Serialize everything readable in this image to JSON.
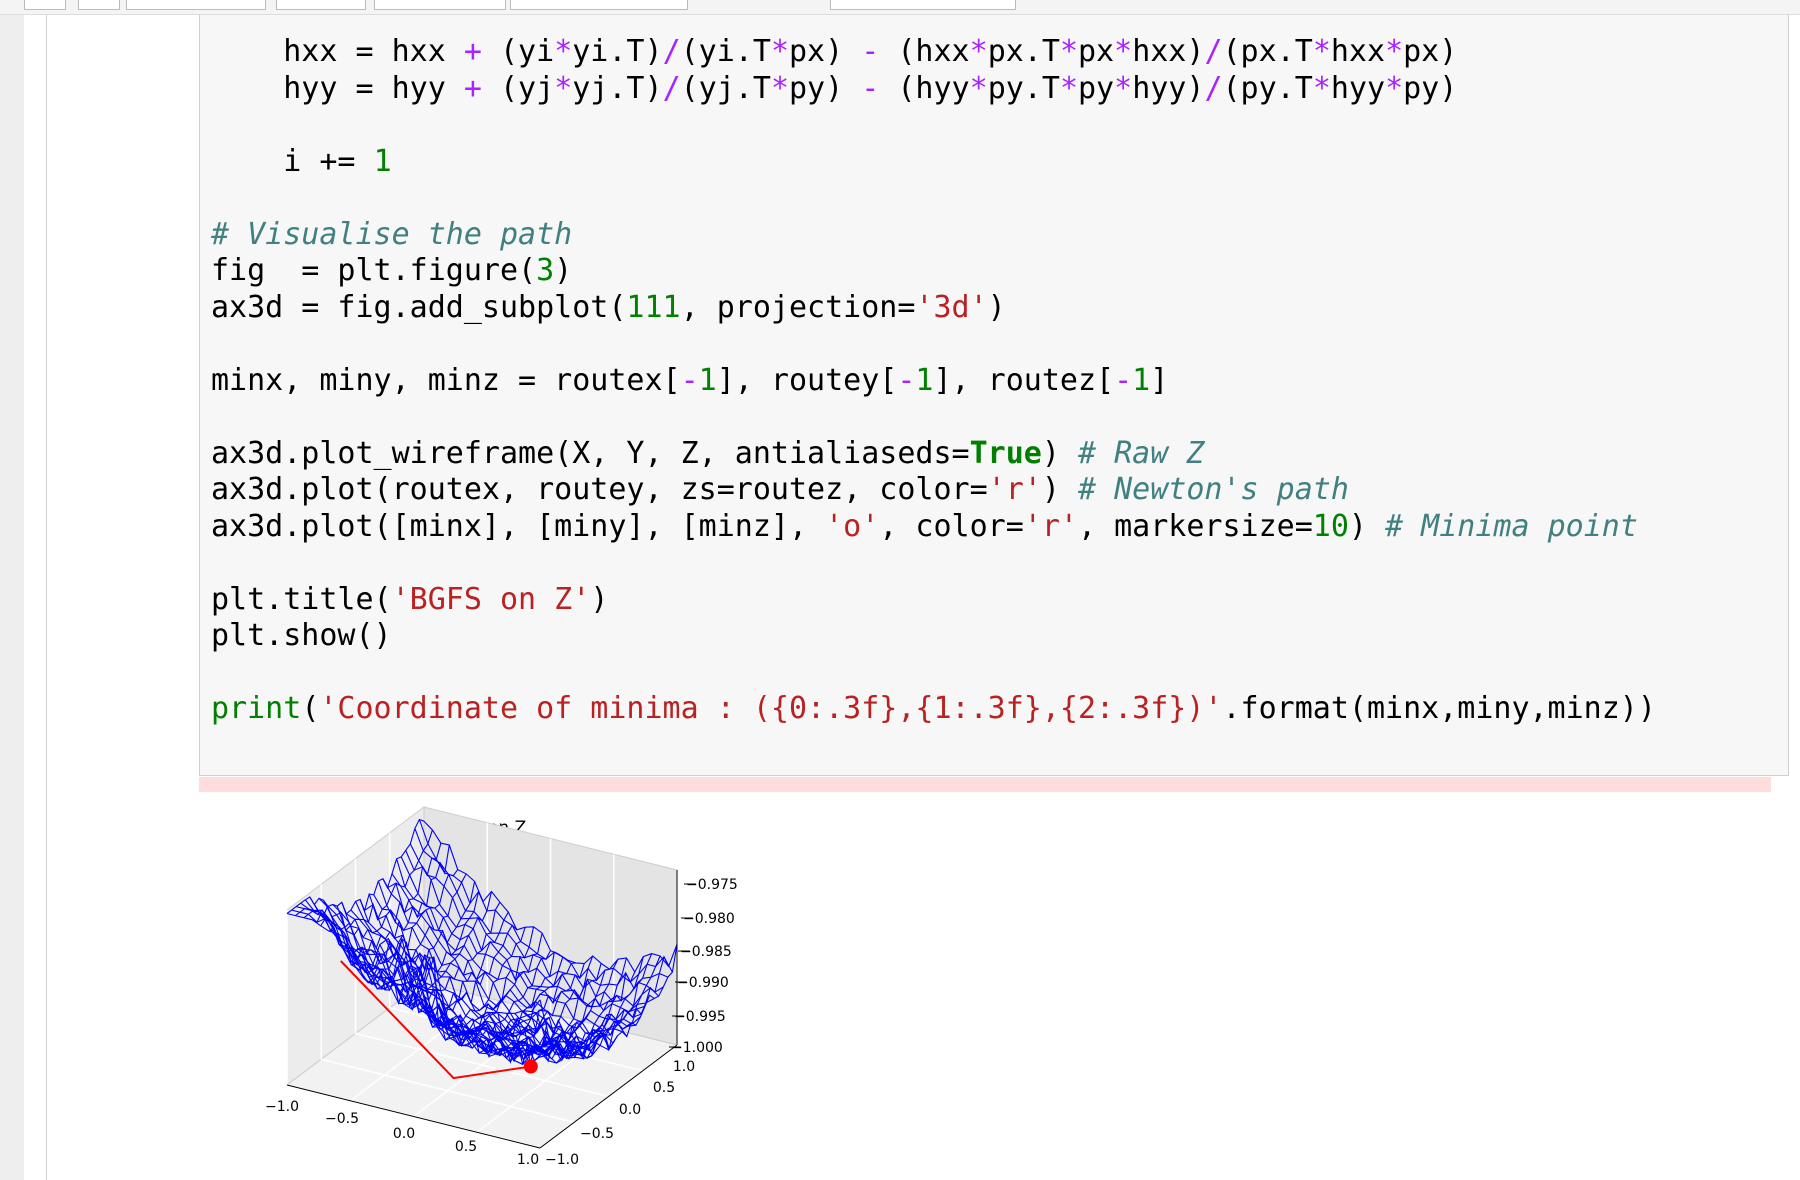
{
  "code_cell": {
    "lines": [
      "    hxx = hxx + (yi*yi.T)/(yi.T*px) - (hxx*px.T*px*hxx)/(px.T*hxx*px)",
      "    hyy = hyy + (yj*yj.T)/(yj.T*py) - (hyy*py.T*py*hyy)/(py.T*hyy*py)",
      "    i += 1",
      "# Visualise the path",
      "fig  = plt.figure(3)",
      "ax3d = fig.add_subplot(111, projection='3d')",
      "minx, miny, minz = routex[-1], routey[-1], routez[-1]",
      "ax3d.plot_wireframe(X, Y, Z, antialiaseds=True) # Raw Z",
      "ax3d.plot(routex, routey, zs=routez, color='r') # Newton's path",
      "ax3d.plot([minx], [miny], [minz], 'o', color='r', markersize=10) # Minima point",
      "plt.title('BGFS on Z')",
      "plt.show()",
      "print('Coordinate of minima : ({0:.3f},{1:.3f},{2:.3f})'.format(minx,miny,minz))"
    ]
  },
  "output": {
    "plot_title": "BGFS on Z",
    "x_tick_labels": [
      "−1.0",
      "−0.5",
      "0.0",
      "0.5",
      "1.0"
    ],
    "y_tick_labels": [
      "1.0",
      "0.5",
      "0.0",
      "−0.5",
      "−1.0"
    ],
    "z_tick_labels": [
      "−0.975",
      "−0.980",
      "−0.985",
      "−0.990",
      "−0.995",
      "−1.000"
    ]
  }
}
